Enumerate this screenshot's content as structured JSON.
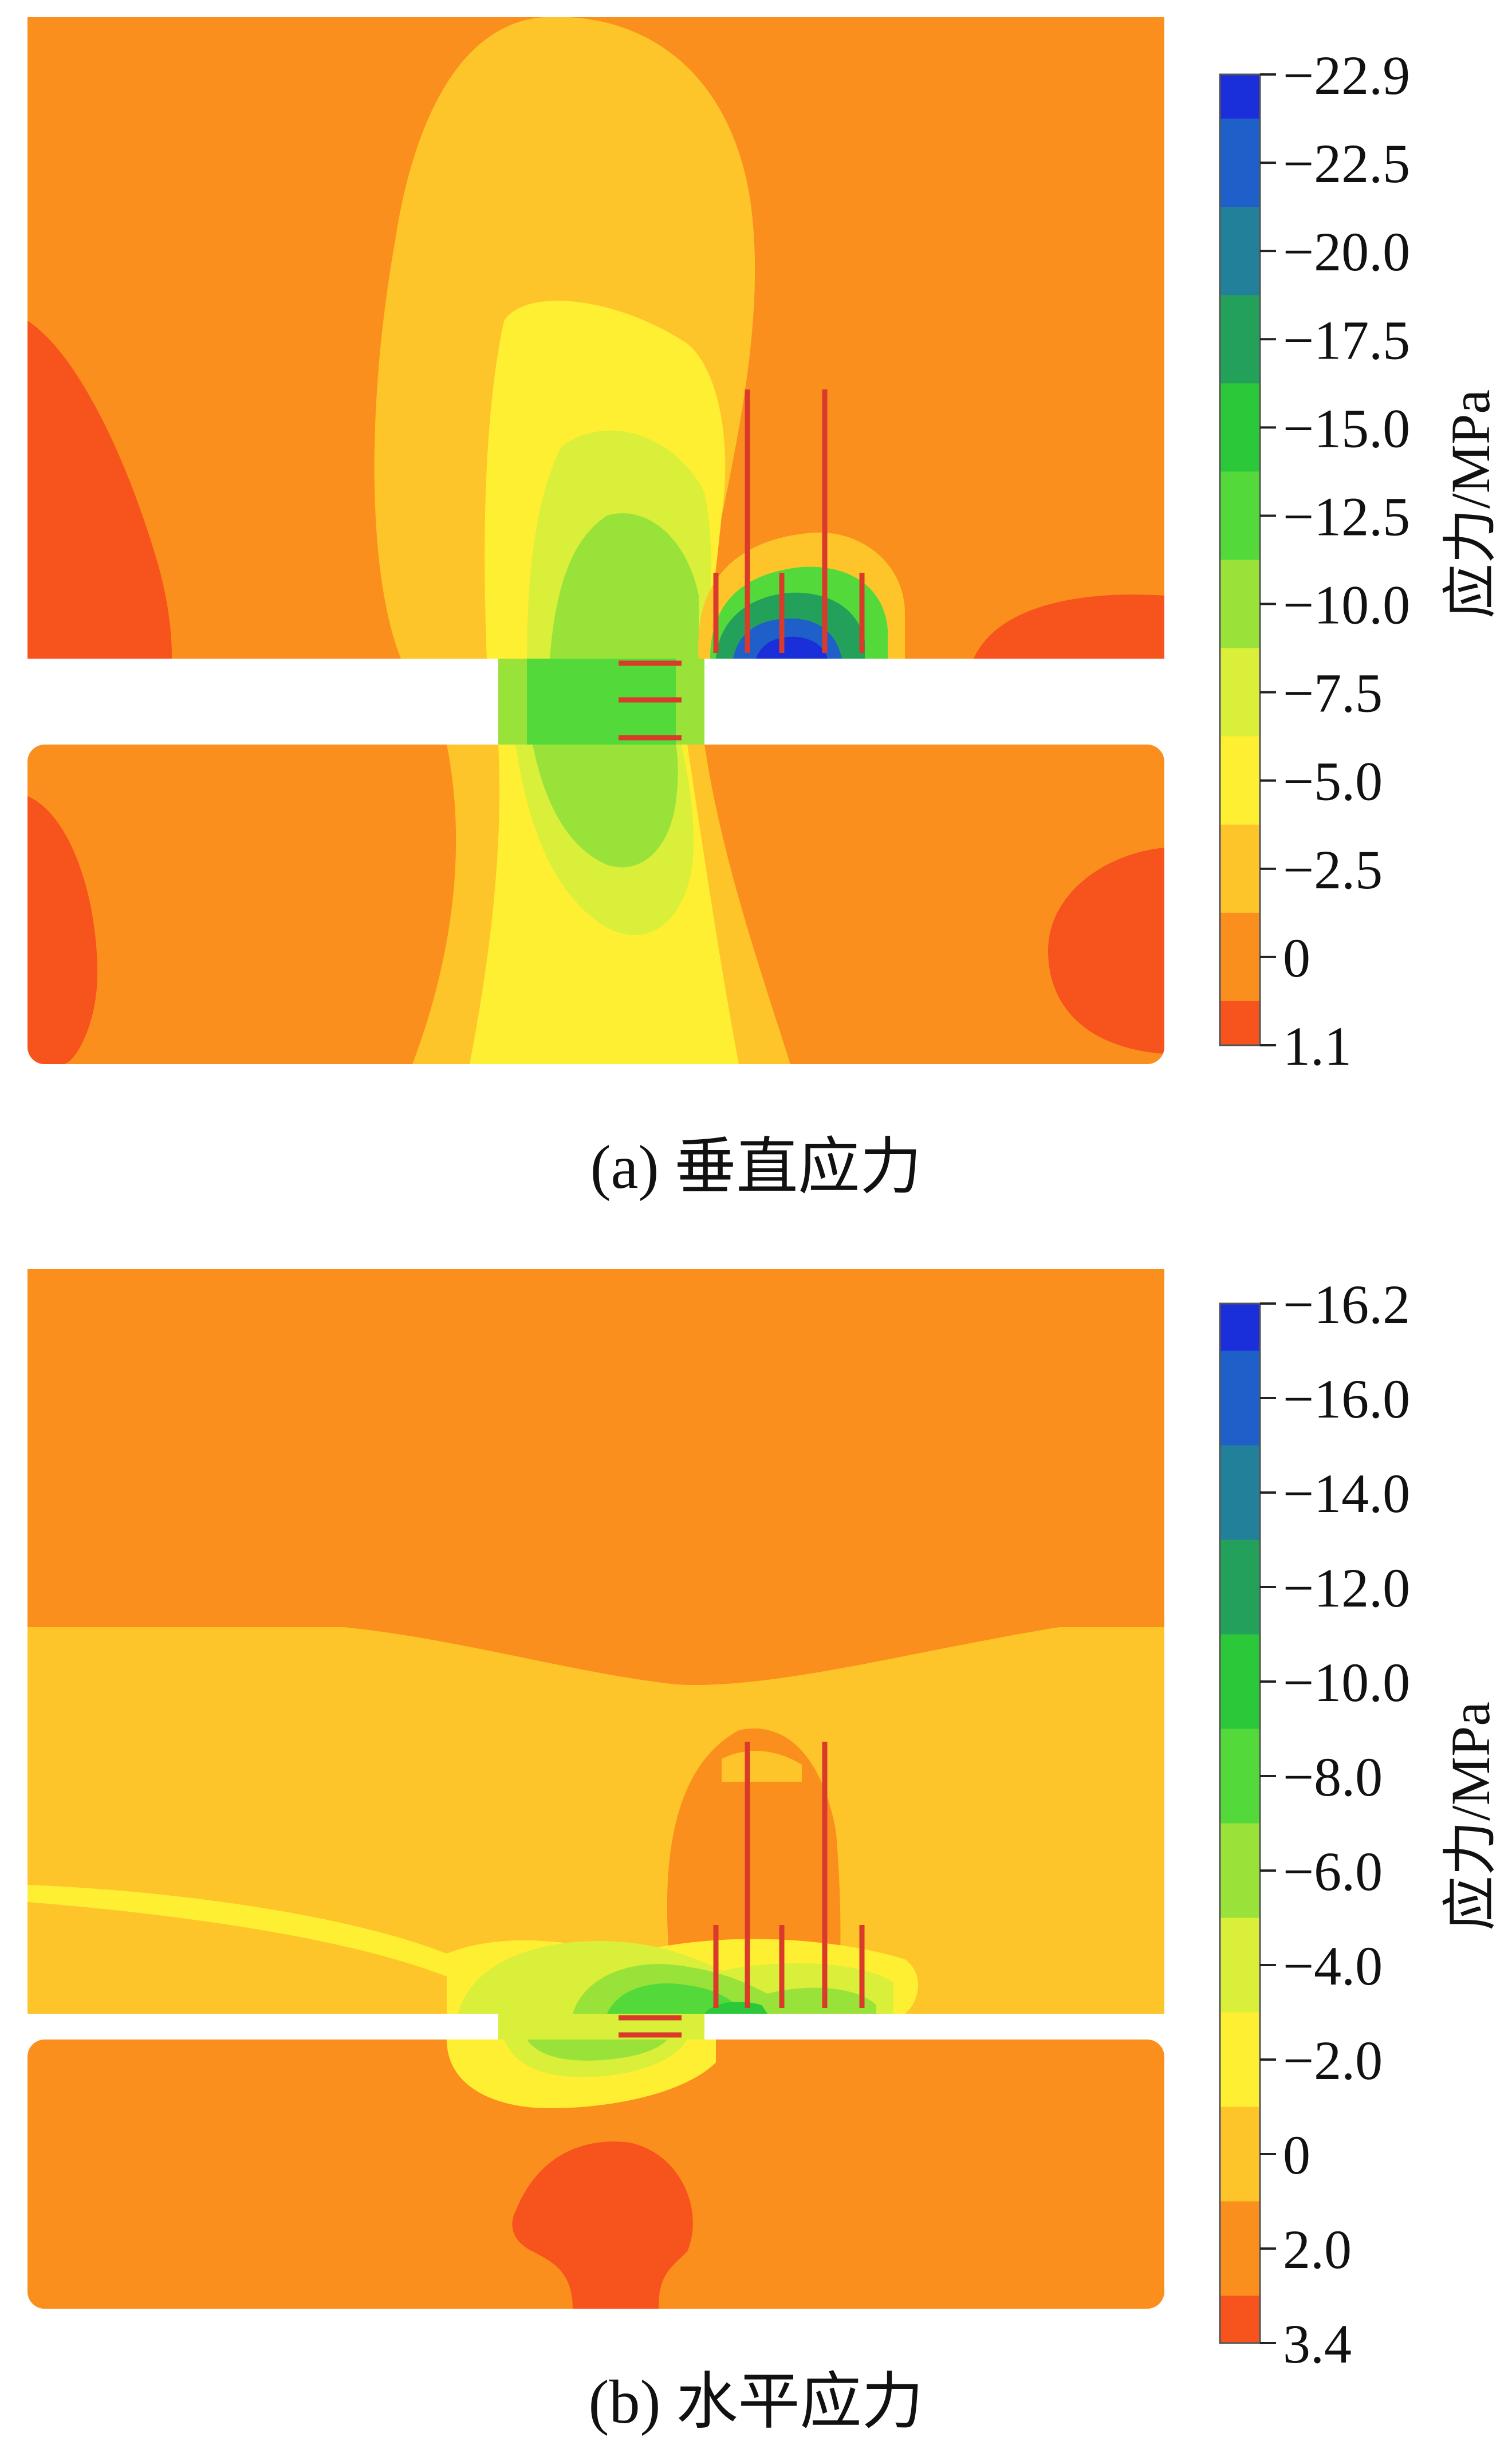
{
  "panels": [
    {
      "id": "a",
      "caption": "(a)  垂直应力",
      "colorbar": {
        "unit_label": "应力/MPa",
        "tick_labels": [
          "−22.9",
          "−22.5",
          "−20.0",
          "−17.5",
          "−15.0",
          "−12.5",
          "−10.0",
          "−7.5",
          "−5.0",
          "−2.5",
          "0",
          "1.1"
        ],
        "colors": [
          "#1a2fd9",
          "#1f5fc9",
          "#23809a",
          "#23a05a",
          "#2bc83a",
          "#53d93a",
          "#99e23a",
          "#d9ef3a",
          "#ffef33",
          "#fdc52a",
          "#fb8f1e",
          "#f7531d"
        ]
      }
    },
    {
      "id": "b",
      "caption": "(b)  水平应力",
      "colorbar": {
        "unit_label": "应力/MPa",
        "tick_labels": [
          "−16.2",
          "−16.0",
          "−14.0",
          "−12.0",
          "−10.0",
          "−8.0",
          "−6.0",
          "−4.0",
          "−2.0",
          "0",
          "2.0",
          "3.4"
        ],
        "colors": [
          "#1a2fd9",
          "#1f5fc9",
          "#23809a",
          "#23a05a",
          "#2bc83a",
          "#53d93a",
          "#99e23a",
          "#d9ef3a",
          "#ffef33",
          "#fdc52a",
          "#fb8f1e",
          "#f7531d"
        ]
      }
    }
  ]
}
